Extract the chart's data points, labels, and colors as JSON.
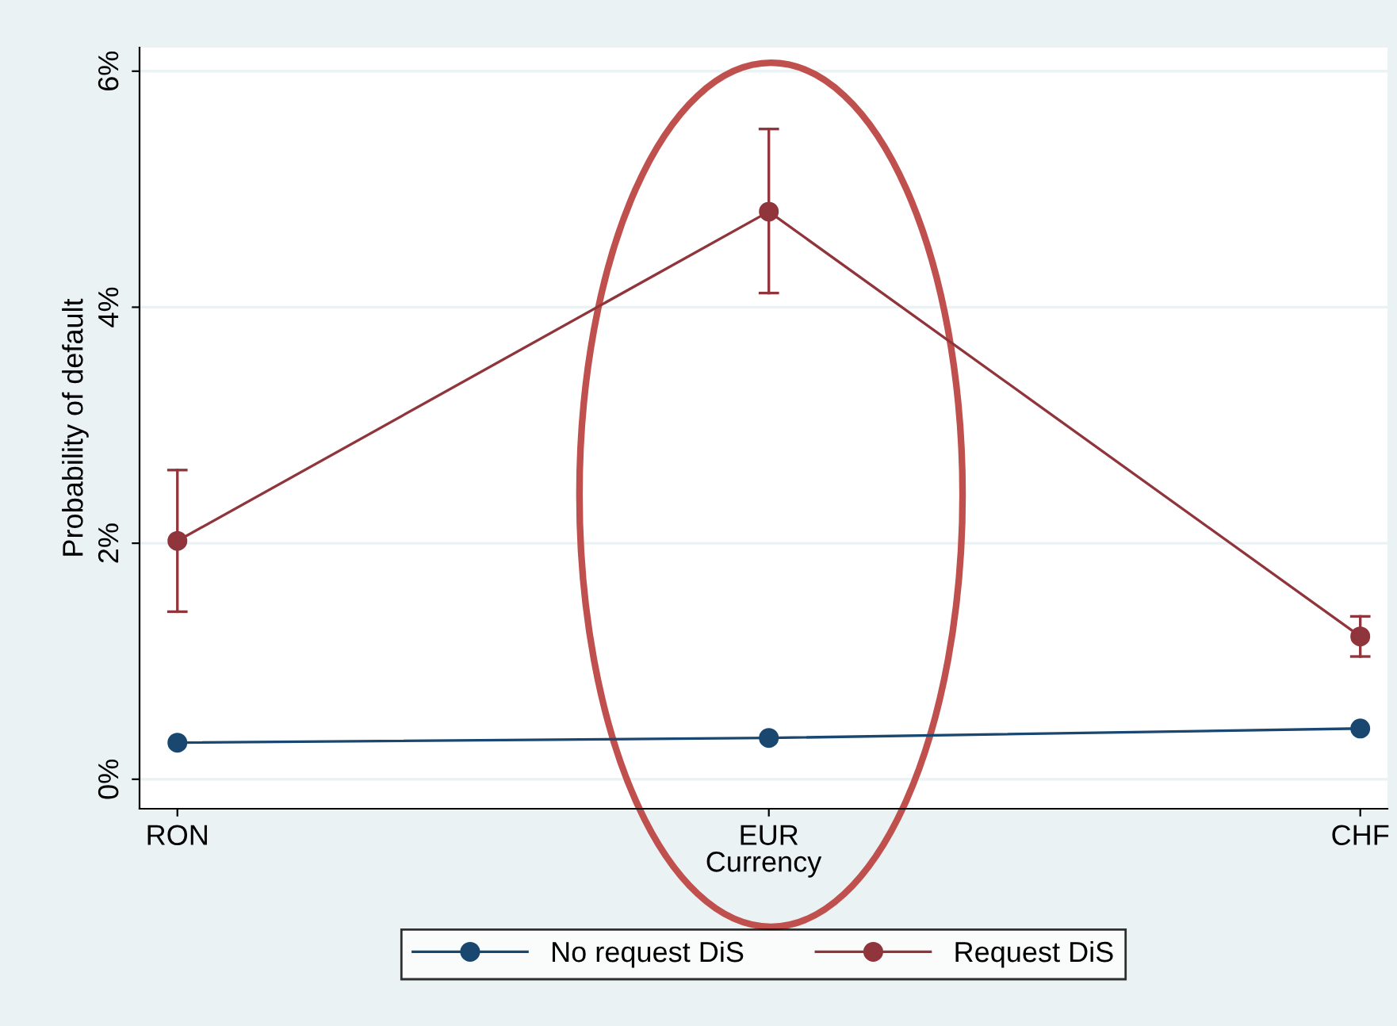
{
  "chart_data": {
    "type": "line",
    "xlabel": "Currency",
    "ylabel": "Probability of default",
    "categories": [
      "RON",
      "EUR",
      "CHF"
    ],
    "series": [
      {
        "name": "No request DiS",
        "color": "#1a476f",
        "values": [
          0.31,
          0.35,
          0.43
        ]
      },
      {
        "name": "Request DiS",
        "color": "#90353b",
        "values": [
          2.02,
          4.81,
          1.21
        ],
        "errors": [
          [
            1.42,
            2.62
          ],
          [
            4.12,
            5.51
          ],
          [
            1.04,
            1.38
          ]
        ]
      }
    ],
    "ylim": [
      -0.25,
      6.2
    ],
    "yticks": [
      {
        "value": 0,
        "label": "0%"
      },
      {
        "value": 2,
        "label": "2%"
      },
      {
        "value": 4,
        "label": "4%"
      },
      {
        "value": 6,
        "label": "6%"
      }
    ],
    "grid": "y",
    "legend": "bottom",
    "marker": "circle",
    "line_style": "solid"
  }
}
